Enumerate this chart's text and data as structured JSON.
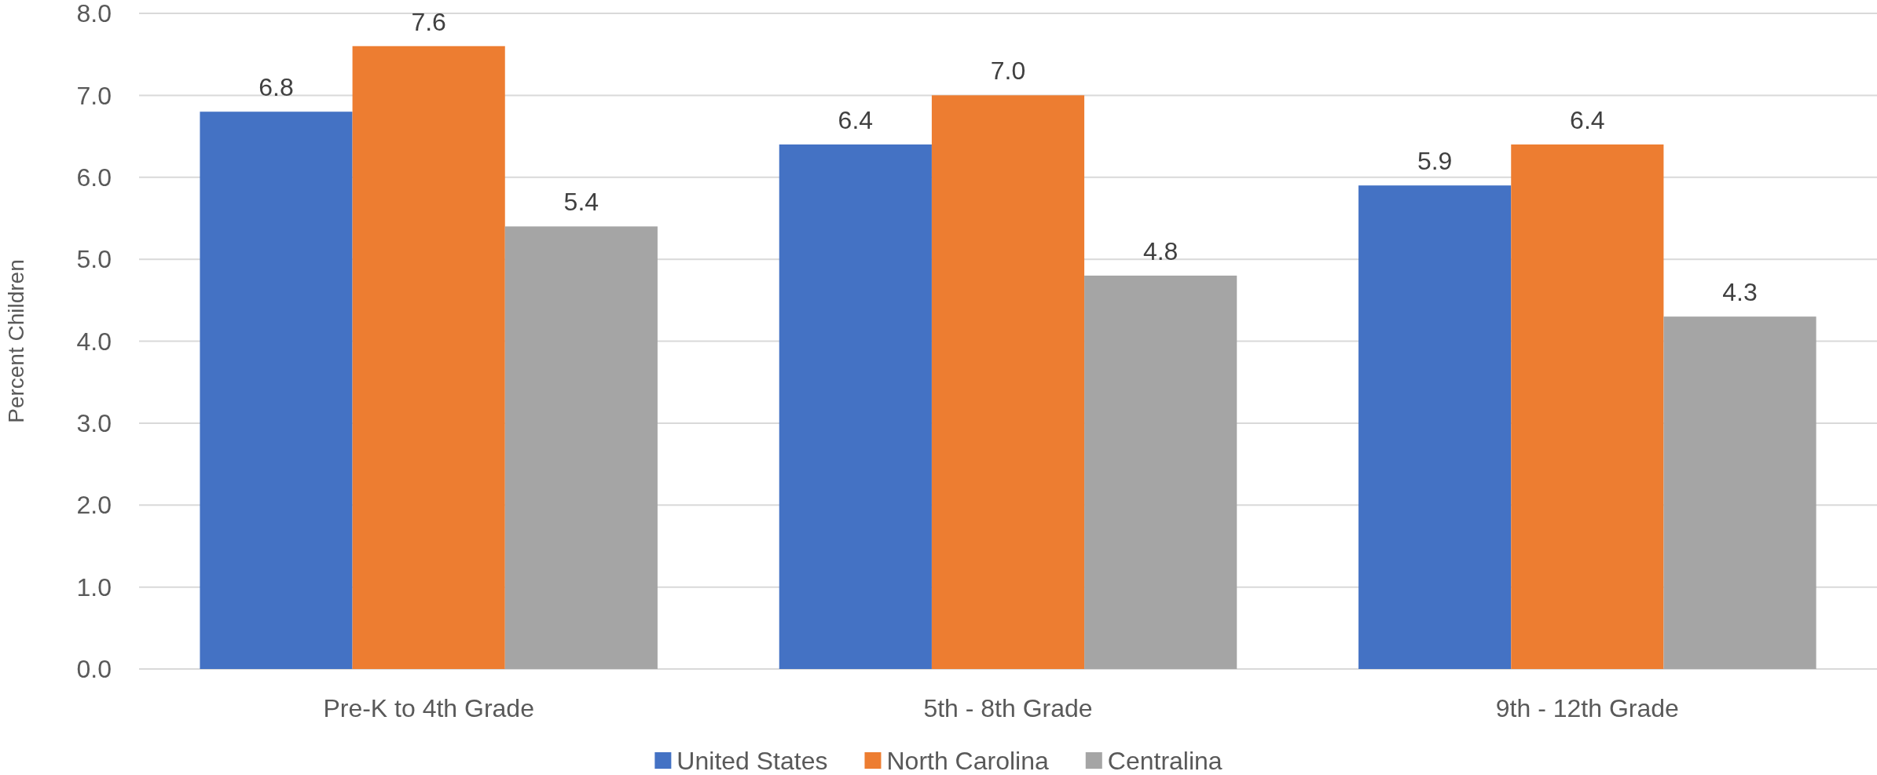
{
  "chart_data": {
    "type": "bar",
    "ylabel": "Percent Children",
    "categories": [
      "Pre-K to 4th Grade",
      "5th - 8th Grade",
      "9th - 12th Grade"
    ],
    "series": [
      {
        "name": "United States",
        "color": "#4472c4",
        "values": [
          6.8,
          6.4,
          5.9
        ],
        "value_labels": [
          "6.8",
          "6.4",
          "5.9"
        ]
      },
      {
        "name": "North Carolina",
        "color": "#ed7d31",
        "values": [
          7.6,
          7.0,
          6.4
        ],
        "value_labels": [
          "7.6",
          "7.0",
          "6.4"
        ]
      },
      {
        "name": "Centralina",
        "color": "#a5a5a5",
        "values": [
          5.4,
          4.8,
          4.3
        ],
        "value_labels": [
          "5.4",
          "4.8",
          "4.3"
        ]
      }
    ],
    "ylim": [
      0,
      8
    ],
    "yticks": [
      {
        "value": 0,
        "label": "0.0"
      },
      {
        "value": 1,
        "label": "1.0"
      },
      {
        "value": 2,
        "label": "2.0"
      },
      {
        "value": 3,
        "label": "3.0"
      },
      {
        "value": 4,
        "label": "4.0"
      },
      {
        "value": 5,
        "label": "5.0"
      },
      {
        "value": 6,
        "label": "6.0"
      },
      {
        "value": 7,
        "label": "7.0"
      },
      {
        "value": 8,
        "label": "8.0"
      }
    ],
    "grid": "y",
    "legend": "bottom"
  }
}
